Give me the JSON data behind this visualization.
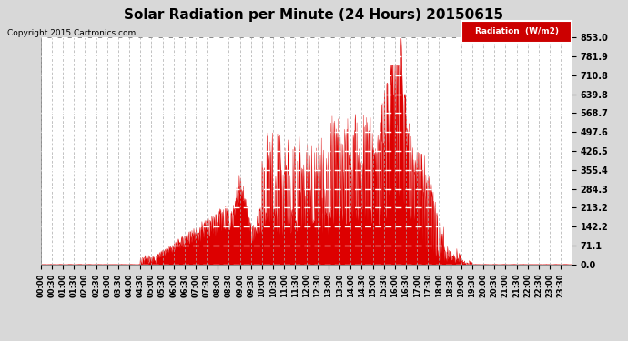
{
  "title": "Solar Radiation per Minute (24 Hours) 20150615",
  "copyright": "Copyright 2015 Cartronics.com",
  "background_color": "#d8d8d8",
  "plot_bg_color": "#ffffff",
  "bar_color": "#dd0000",
  "grid_color": "#aaaaaa",
  "yticks": [
    0.0,
    71.1,
    142.2,
    213.2,
    284.3,
    355.4,
    426.5,
    497.6,
    568.7,
    639.8,
    710.8,
    781.9,
    853.0
  ],
  "ymax": 853.0,
  "total_minutes": 1440,
  "tick_every": 30
}
